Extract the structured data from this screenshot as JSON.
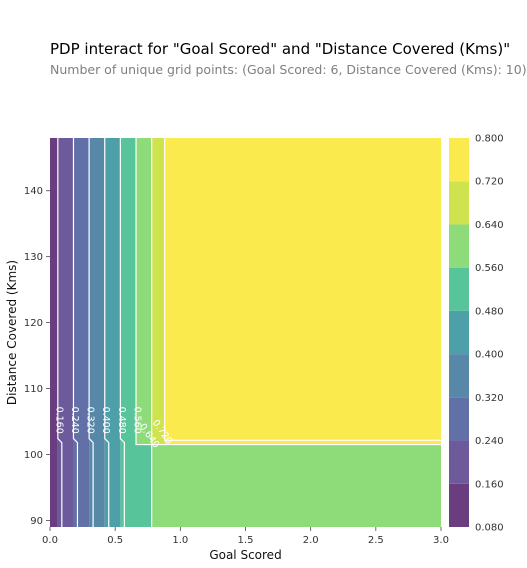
{
  "title": "PDP interact for \"Goal Scored\" and \"Distance Covered (Kms)\"",
  "subtitle": "Number of unique grid points: (Goal Scored: 6, Distance Covered (Kms): 10)",
  "chart_data": {
    "type": "heatmap",
    "subtype": "filled-contour",
    "xlabel": "Goal Scored",
    "ylabel": "Distance Covered (Kms)",
    "xlim": [
      0.0,
      3.0
    ],
    "ylim": [
      89,
      148
    ],
    "x_ticks": [
      0.0,
      0.5,
      1.0,
      1.5,
      2.0,
      2.5,
      3.0
    ],
    "x_tick_labels": [
      "0.0",
      "0.5",
      "1.0",
      "1.5",
      "2.0",
      "2.5",
      "3.0"
    ],
    "y_ticks": [
      90,
      100,
      110,
      120,
      130,
      140
    ],
    "y_tick_labels": [
      "90",
      "100",
      "110",
      "120",
      "130",
      "140"
    ],
    "contour_levels": [
      0.08,
      0.16,
      0.24,
      0.32,
      0.4,
      0.48,
      0.56,
      0.64,
      0.72,
      0.8
    ],
    "level_colors": [
      "#6a3d7e",
      "#6d5a9a",
      "#6170a6",
      "#5888a8",
      "#4ea0a8",
      "#58c49a",
      "#8edb7a",
      "#cfe34e",
      "#fbea4e"
    ],
    "colorbar_tick_labels": [
      "0.080",
      "0.160",
      "0.240",
      "0.320",
      "0.400",
      "0.480",
      "0.560",
      "0.640",
      "0.720",
      "0.800"
    ],
    "contour_labels": [
      "0.160",
      "0.240",
      "0.320",
      "0.400",
      "0.480",
      "0.560",
      "0.640",
      "0.720"
    ],
    "regions": [
      {
        "x_range": [
          0.0,
          0.06
        ],
        "y_range": [
          89,
          148
        ],
        "level": 0
      },
      {
        "x_range": [
          0.06,
          0.18
        ],
        "y_range": [
          89,
          148
        ],
        "level": 1
      },
      {
        "x_range": [
          0.18,
          0.3
        ],
        "y_range": [
          89,
          148
        ],
        "level": 2
      },
      {
        "x_range": [
          0.3,
          0.42
        ],
        "y_range": [
          89,
          148
        ],
        "level": 3
      },
      {
        "x_range": [
          0.42,
          0.54
        ],
        "y_range": [
          89,
          148
        ],
        "level": 4
      },
      {
        "x_range": [
          0.54,
          0.66
        ],
        "y_range": [
          89,
          148
        ],
        "level": 5
      },
      {
        "x_range": [
          0.66,
          0.78
        ],
        "y_range": [
          101.5,
          148
        ],
        "level": 6
      },
      {
        "x_range": [
          0.66,
          0.78
        ],
        "y_range": [
          89,
          101.5
        ],
        "level": 5
      },
      {
        "x_range": [
          0.78,
          3.0
        ],
        "y_range": [
          89,
          101.5
        ],
        "level": 6
      },
      {
        "x_range": [
          0.78,
          0.88
        ],
        "y_range": [
          101.5,
          148
        ],
        "level": 7
      },
      {
        "x_range": [
          0.88,
          3.0
        ],
        "y_range": [
          101.5,
          148
        ],
        "level": 8
      }
    ]
  }
}
